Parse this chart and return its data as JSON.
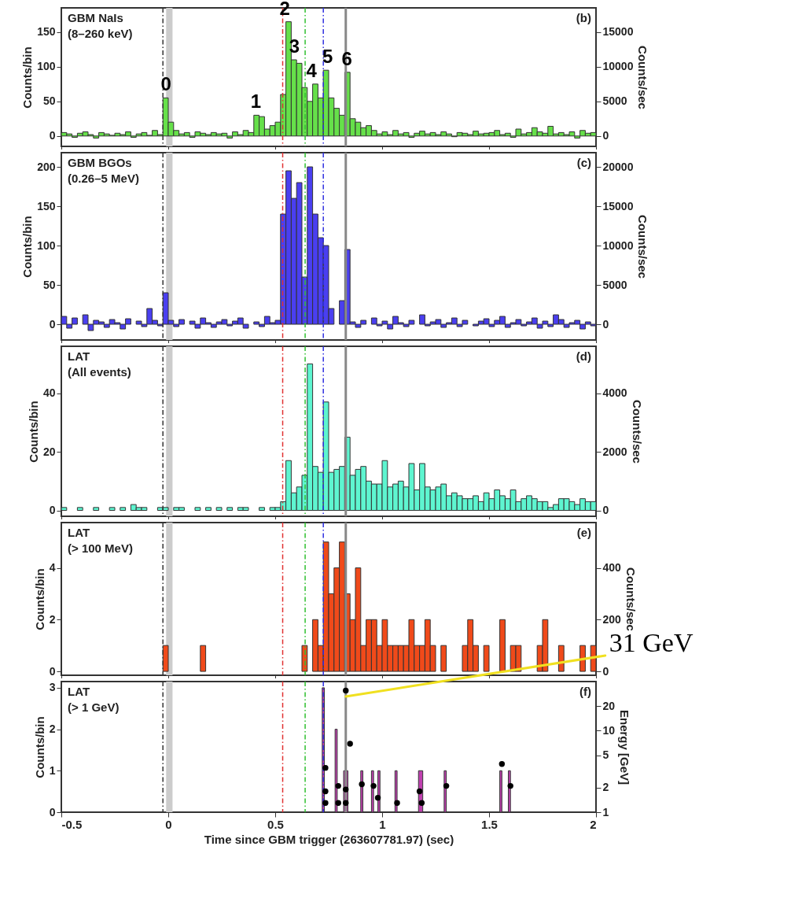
{
  "chart_data": [
    {
      "type": "histogram",
      "color": "#66e04a",
      "ylabel": "Counts/bin",
      "y2label": "Counts/sec",
      "xlim": [
        -0.5,
        2
      ],
      "xticks": [
        -0.5,
        0,
        0.5,
        1,
        1.5,
        2
      ],
      "ylim": [
        -15,
        185
      ],
      "yticks": [
        0,
        50,
        100,
        150
      ],
      "y2lim": [
        -1500,
        18500
      ],
      "y2ticks": [
        0,
        5000,
        10000,
        15000
      ],
      "tick_labels": "y",
      "bins": [
        -0.5,
        -0.475,
        -0.45,
        -0.425,
        -0.4,
        -0.375,
        -0.35,
        -0.325,
        -0.3,
        -0.275,
        -0.25,
        -0.225,
        -0.2,
        -0.175,
        -0.15,
        -0.125,
        -0.1,
        -0.075,
        -0.05,
        -0.025,
        0,
        0.025,
        0.05,
        0.075,
        0.1,
        0.125,
        0.15,
        0.175,
        0.2,
        0.225,
        0.25,
        0.275,
        0.3,
        0.325,
        0.35,
        0.375,
        0.4,
        0.425,
        0.45,
        0.475,
        0.5,
        0.525,
        0.55,
        0.575,
        0.6,
        0.625,
        0.65,
        0.675,
        0.7,
        0.725,
        0.75,
        0.775,
        0.8,
        0.825,
        0.85,
        0.875,
        0.9,
        0.925,
        0.95,
        0.975,
        1,
        1.025,
        1.05,
        1.075,
        1.1,
        1.125,
        1.15,
        1.175,
        1.2,
        1.225,
        1.25,
        1.275,
        1.3,
        1.325,
        1.35,
        1.375,
        1.4,
        1.425,
        1.45,
        1.475,
        1.5,
        1.525,
        1.55,
        1.575,
        1.6,
        1.625,
        1.65,
        1.675,
        1.7,
        1.725,
        1.75,
        1.775,
        1.8,
        1.825,
        1.85,
        1.875,
        1.9,
        1.925,
        1.95,
        1.975,
        2
      ],
      "values": [
        5,
        3,
        -2,
        4,
        6,
        2,
        -3,
        5,
        3,
        1,
        4,
        2,
        6,
        -2,
        3,
        5,
        1,
        8,
        2,
        55,
        20,
        8,
        3,
        5,
        -2,
        6,
        4,
        2,
        5,
        3,
        4,
        -3,
        6,
        2,
        8,
        5,
        30,
        28,
        10,
        15,
        20,
        60,
        165,
        110,
        105,
        70,
        50,
        75,
        55,
        95,
        55,
        40,
        30,
        92,
        25,
        20,
        12,
        15,
        8,
        3,
        6,
        2,
        8,
        3,
        5,
        -2,
        4,
        7,
        3,
        5,
        2,
        6,
        3,
        -1,
        5,
        4,
        2,
        7,
        3,
        4,
        5,
        8,
        2,
        4,
        -2,
        10,
        3,
        5,
        12,
        6,
        4,
        14,
        3,
        5,
        2,
        6,
        -3,
        8,
        4,
        5
      ],
      "ref_lines": [
        {
          "axis": "x",
          "value": -0.025,
          "color": "#333333",
          "line_style": "dashed"
        },
        {
          "axis": "x",
          "value": 0.535,
          "color": "#e03030",
          "line_style": "dashed"
        },
        {
          "axis": "x",
          "value": 0.64,
          "color": "#30c030",
          "line_style": "dashed"
        },
        {
          "axis": "x",
          "value": 0.725,
          "color": "#3030e0",
          "line_style": "dashed"
        },
        {
          "axis": "x",
          "value": 0.83,
          "color": "#888888",
          "line_style": "solid"
        }
      ],
      "bands": [
        {
          "axis": "x",
          "from": -0.01,
          "to": 0.02,
          "color": "#cccccc"
        }
      ],
      "annotations": [
        "GBM NaIs",
        "(8–260 keV)",
        "(b)",
        {
          "text": "0",
          "x": -0.01,
          "y": 55
        },
        {
          "text": "1",
          "x": 0.41,
          "y": 30
        },
        {
          "text": "2",
          "x": 0.545,
          "y": 165
        },
        {
          "text": "3",
          "x": 0.59,
          "y": 110
        },
        {
          "text": "4",
          "x": 0.67,
          "y": 75
        },
        {
          "text": "5",
          "x": 0.745,
          "y": 95
        },
        {
          "text": "6",
          "x": 0.835,
          "y": 92
        }
      ]
    },
    {
      "type": "histogram",
      "color": "#4a3ff0",
      "ylabel": "Counts/bin",
      "y2label": "Counts/sec",
      "xlim": [
        -0.5,
        2
      ],
      "xticks": [
        -0.5,
        0,
        0.5,
        1,
        1.5,
        2
      ],
      "ylim": [
        -20,
        218
      ],
      "yticks": [
        0,
        50,
        100,
        150,
        200
      ],
      "y2lim": [
        -2000,
        21800
      ],
      "y2ticks": [
        0,
        5000,
        10000,
        15000,
        20000
      ],
      "tick_labels": "y",
      "bins": [
        -0.5,
        -0.475,
        -0.45,
        -0.425,
        -0.4,
        -0.375,
        -0.35,
        -0.325,
        -0.3,
        -0.275,
        -0.25,
        -0.225,
        -0.2,
        -0.175,
        -0.15,
        -0.125,
        -0.1,
        -0.075,
        -0.05,
        -0.025,
        0,
        0.025,
        0.05,
        0.075,
        0.1,
        0.125,
        0.15,
        0.175,
        0.2,
        0.225,
        0.25,
        0.275,
        0.3,
        0.325,
        0.35,
        0.375,
        0.4,
        0.425,
        0.45,
        0.475,
        0.5,
        0.525,
        0.55,
        0.575,
        0.6,
        0.625,
        0.65,
        0.675,
        0.7,
        0.725,
        0.75,
        0.775,
        0.8,
        0.825,
        0.85,
        0.875,
        0.9,
        0.925,
        0.95,
        0.975,
        1,
        1.025,
        1.05,
        1.075,
        1.1,
        1.125,
        1.15,
        1.175,
        1.2,
        1.225,
        1.25,
        1.275,
        1.3,
        1.325,
        1.35,
        1.375,
        1.4,
        1.425,
        1.45,
        1.475,
        1.5,
        1.525,
        1.55,
        1.575,
        1.6,
        1.625,
        1.65,
        1.675,
        1.7,
        1.725,
        1.75,
        1.775,
        1.8,
        1.825,
        1.85,
        1.875,
        1.9,
        1.925,
        1.95,
        1.975,
        2
      ],
      "values": [
        10,
        -5,
        8,
        0,
        12,
        -8,
        5,
        3,
        -4,
        6,
        2,
        -6,
        7,
        0,
        4,
        -3,
        20,
        5,
        -2,
        40,
        5,
        -3,
        6,
        0,
        4,
        -5,
        8,
        2,
        -4,
        3,
        6,
        -2,
        4,
        8,
        -5,
        0,
        3,
        -3,
        10,
        2,
        5,
        140,
        195,
        160,
        180,
        60,
        200,
        140,
        110,
        100,
        20,
        0,
        30,
        95,
        3,
        -4,
        5,
        0,
        8,
        -2,
        4,
        -6,
        10,
        2,
        -3,
        5,
        0,
        12,
        -2,
        3,
        6,
        -4,
        2,
        8,
        -3,
        5,
        0,
        -2,
        4,
        7,
        -3,
        5,
        10,
        -4,
        2,
        6,
        -2,
        3,
        8,
        -5,
        4,
        -3,
        12,
        6,
        -4,
        2,
        5,
        -6,
        3,
        -2
      ],
      "ref_lines": [
        {
          "axis": "x",
          "value": -0.025,
          "color": "#333333",
          "line_style": "dashed"
        },
        {
          "axis": "x",
          "value": 0.535,
          "color": "#e03030",
          "line_style": "dashed"
        },
        {
          "axis": "x",
          "value": 0.64,
          "color": "#30c030",
          "line_style": "dashed"
        },
        {
          "axis": "x",
          "value": 0.725,
          "color": "#3030e0",
          "line_style": "dashed"
        },
        {
          "axis": "x",
          "value": 0.83,
          "color": "#888888",
          "line_style": "solid"
        }
      ],
      "bands": [
        {
          "axis": "x",
          "from": -0.01,
          "to": 0.02,
          "color": "#cccccc"
        }
      ],
      "annotations": [
        "GBM BGOs",
        "(0.26–5 MeV)",
        "(c)"
      ]
    },
    {
      "type": "histogram",
      "color": "#5ef5d0",
      "ylabel": "Counts/bin",
      "y2label": "Counts/sec",
      "xlim": [
        -0.5,
        2
      ],
      "xticks": [
        -0.5,
        0,
        0.5,
        1,
        1.5,
        2
      ],
      "ylim": [
        -2,
        56
      ],
      "yticks": [
        0,
        20,
        40
      ],
      "y2lim": [
        -200,
        5600
      ],
      "y2ticks": [
        0,
        2000,
        4000
      ],
      "tick_labels": "y",
      "bins": [
        -0.5,
        -0.475,
        -0.45,
        -0.425,
        -0.4,
        -0.375,
        -0.35,
        -0.325,
        -0.3,
        -0.275,
        -0.25,
        -0.225,
        -0.2,
        -0.175,
        -0.15,
        -0.125,
        -0.1,
        -0.075,
        -0.05,
        -0.025,
        0,
        0.025,
        0.05,
        0.075,
        0.1,
        0.125,
        0.15,
        0.175,
        0.2,
        0.225,
        0.25,
        0.275,
        0.3,
        0.325,
        0.35,
        0.375,
        0.4,
        0.425,
        0.45,
        0.475,
        0.5,
        0.525,
        0.55,
        0.575,
        0.6,
        0.625,
        0.65,
        0.675,
        0.7,
        0.725,
        0.75,
        0.775,
        0.8,
        0.825,
        0.85,
        0.875,
        0.9,
        0.925,
        0.95,
        0.975,
        1,
        1.025,
        1.05,
        1.075,
        1.1,
        1.125,
        1.15,
        1.175,
        1.2,
        1.225,
        1.25,
        1.275,
        1.3,
        1.325,
        1.35,
        1.375,
        1.4,
        1.425,
        1.45,
        1.475,
        1.5,
        1.525,
        1.55,
        1.575,
        1.6,
        1.625,
        1.65,
        1.675,
        1.7,
        1.725,
        1.75,
        1.775,
        1.8,
        1.825,
        1.85,
        1.875,
        1.9,
        1.925,
        1.95,
        1.975,
        2
      ],
      "values": [
        1,
        0,
        0,
        1,
        0,
        0,
        1,
        0,
        0,
        1,
        0,
        1,
        0,
        2,
        1,
        1,
        0,
        0,
        1,
        1,
        0,
        1,
        1,
        0,
        0,
        1,
        0,
        1,
        0,
        1,
        0,
        1,
        0,
        1,
        1,
        0,
        0,
        1,
        0,
        1,
        1,
        3,
        17,
        6,
        8,
        12,
        50,
        15,
        13,
        37,
        13,
        14,
        15,
        25,
        12,
        14,
        15,
        10,
        9,
        9,
        17,
        8,
        9,
        10,
        8,
        16,
        7,
        16,
        8,
        7,
        8,
        9,
        5,
        6,
        5,
        4,
        4,
        5,
        3,
        6,
        4,
        7,
        5,
        4,
        7,
        3,
        4,
        5,
        4,
        3,
        3,
        1,
        2,
        4,
        4,
        3,
        2,
        4,
        3,
        3
      ],
      "ref_lines": [
        {
          "axis": "x",
          "value": -0.025,
          "color": "#333333",
          "line_style": "dashed"
        },
        {
          "axis": "x",
          "value": 0.535,
          "color": "#e03030",
          "line_style": "dashed"
        },
        {
          "axis": "x",
          "value": 0.64,
          "color": "#30c030",
          "line_style": "dashed"
        },
        {
          "axis": "x",
          "value": 0.725,
          "color": "#3030e0",
          "line_style": "dashed"
        },
        {
          "axis": "x",
          "value": 0.83,
          "color": "#888888",
          "line_style": "solid"
        }
      ],
      "bands": [
        {
          "axis": "x",
          "from": -0.01,
          "to": 0.02,
          "color": "#cccccc"
        }
      ],
      "annotations": [
        "LAT",
        "(All events)",
        "(d)"
      ]
    },
    {
      "type": "histogram",
      "color": "#f04a1a",
      "ylabel": "Counts/bin",
      "y2label": "Counts/sec",
      "xlim": [
        -0.5,
        2
      ],
      "xticks": [
        -0.5,
        0,
        0.5,
        1,
        1.5,
        2
      ],
      "ylim": [
        -0.15,
        5.75
      ],
      "yticks": [
        0,
        2,
        4
      ],
      "y2lim": [
        -15,
        575
      ],
      "y2ticks": [
        0,
        200,
        400
      ],
      "tick_labels": "y",
      "bins": [
        -0.5,
        -0.475,
        -0.45,
        -0.425,
        -0.4,
        -0.375,
        -0.35,
        -0.325,
        -0.3,
        -0.275,
        -0.25,
        -0.225,
        -0.2,
        -0.175,
        -0.15,
        -0.125,
        -0.1,
        -0.075,
        -0.05,
        -0.025,
        0,
        0.025,
        0.05,
        0.075,
        0.1,
        0.125,
        0.15,
        0.175,
        0.2,
        0.225,
        0.25,
        0.275,
        0.3,
        0.325,
        0.35,
        0.375,
        0.4,
        0.425,
        0.45,
        0.475,
        0.5,
        0.525,
        0.55,
        0.575,
        0.6,
        0.625,
        0.65,
        0.675,
        0.7,
        0.725,
        0.75,
        0.775,
        0.8,
        0.825,
        0.85,
        0.875,
        0.9,
        0.925,
        0.95,
        0.975,
        1,
        1.025,
        1.05,
        1.075,
        1.1,
        1.125,
        1.15,
        1.175,
        1.2,
        1.225,
        1.25,
        1.275,
        1.3,
        1.325,
        1.35,
        1.375,
        1.4,
        1.425,
        1.45,
        1.475,
        1.5,
        1.525,
        1.55,
        1.575,
        1.6,
        1.625,
        1.65,
        1.675,
        1.7,
        1.725,
        1.75,
        1.775,
        1.8,
        1.825,
        1.85,
        1.875,
        1.9,
        1.925,
        1.95,
        1.975,
        2
      ],
      "values": [
        0,
        0,
        0,
        0,
        0,
        0,
        0,
        0,
        0,
        0,
        0,
        0,
        0,
        0,
        0,
        0,
        0,
        0,
        0,
        1,
        0,
        0,
        0,
        0,
        0,
        0,
        1,
        0,
        0,
        0,
        0,
        0,
        0,
        0,
        0,
        0,
        0,
        0,
        0,
        0,
        0,
        0,
        0,
        0,
        0,
        1,
        0,
        2,
        1,
        5,
        3,
        4,
        5,
        3,
        2,
        4,
        1,
        2,
        2,
        1,
        2,
        1,
        1,
        1,
        1,
        2,
        1,
        1,
        2,
        1,
        0,
        1,
        0,
        0,
        0,
        1,
        2,
        1,
        0,
        1,
        0,
        0,
        2,
        0,
        1,
        1,
        0,
        0,
        0,
        1,
        2,
        0,
        0,
        1,
        0,
        0,
        0,
        1,
        0,
        1
      ],
      "ref_lines": [
        {
          "axis": "x",
          "value": -0.025,
          "color": "#333333",
          "line_style": "dashed"
        },
        {
          "axis": "x",
          "value": 0.535,
          "color": "#e03030",
          "line_style": "dashed"
        },
        {
          "axis": "x",
          "value": 0.64,
          "color": "#30c030",
          "line_style": "dashed"
        },
        {
          "axis": "x",
          "value": 0.725,
          "color": "#3030e0",
          "line_style": "dashed"
        },
        {
          "axis": "x",
          "value": 0.83,
          "color": "#888888",
          "line_style": "solid"
        }
      ],
      "bands": [
        {
          "axis": "x",
          "from": -0.01,
          "to": 0.02,
          "color": "#cccccc"
        }
      ],
      "annotations": [
        "LAT",
        "(> 100 MeV)",
        "(e)"
      ]
    },
    {
      "type": "histogram",
      "color": "#c040b0",
      "ylabel": "Counts/bin",
      "y2label": "Energy [GeV]",
      "xlabel": "Time since GBM trigger (263607781.97) (sec)",
      "xlim": [
        -0.5,
        2
      ],
      "xticks": [
        -0.5,
        0,
        0.5,
        1,
        1.5,
        2
      ],
      "ylim": [
        0,
        3.15
      ],
      "yticks": [
        0,
        1,
        2,
        3
      ],
      "y2lim": [
        1,
        40
      ],
      "y2ticks": [
        1,
        2,
        5,
        10,
        20
      ],
      "log": "y2",
      "marker": "circle",
      "bins": [
        0.72,
        0.73,
        0.78,
        0.79,
        0.82,
        0.84,
        0.9,
        0.91,
        0.95,
        0.96,
        0.98,
        0.99,
        1.06,
        1.07,
        1.17,
        1.19,
        1.29,
        1.3,
        1.55,
        1.56,
        1.59,
        1.6
      ],
      "values": [
        3,
        0,
        2,
        0,
        1,
        0,
        1,
        0,
        1,
        0,
        1,
        0,
        1,
        0,
        1,
        0,
        1,
        0,
        1,
        0,
        1
      ],
      "series": [
        {
          "type": "scatter",
          "axis": "y2",
          "color": "#000000",
          "x": [
            0.735,
            0.735,
            0.735,
            0.795,
            0.795,
            0.83,
            0.83,
            0.83,
            0.85,
            0.905,
            0.96,
            0.98,
            1.07,
            1.175,
            1.185,
            1.3,
            1.56,
            1.6
          ],
          "values": [
            3.5,
            1.8,
            1.3,
            2.1,
            1.3,
            31,
            1.9,
            1.3,
            6.9,
            2.2,
            2.1,
            1.5,
            1.3,
            1.8,
            1.3,
            2.1,
            3.9,
            2.1
          ]
        }
      ],
      "ref_lines": [
        {
          "axis": "x",
          "value": -0.025,
          "color": "#333333",
          "line_style": "dashed"
        },
        {
          "axis": "x",
          "value": 0.535,
          "color": "#e03030",
          "line_style": "dashed"
        },
        {
          "axis": "x",
          "value": 0.64,
          "color": "#30c030",
          "line_style": "dashed"
        },
        {
          "axis": "x",
          "value": 0.725,
          "color": "#3030e0",
          "line_style": "dashed"
        },
        {
          "axis": "x",
          "value": 0.83,
          "color": "#888888",
          "line_style": "solid"
        }
      ],
      "bands": [
        {
          "axis": "x",
          "from": -0.01,
          "to": 0.02,
          "color": "#cccccc"
        }
      ],
      "annotations": [
        "LAT",
        "(> 1 GeV)",
        "(f)",
        "31 GeV"
      ]
    }
  ]
}
